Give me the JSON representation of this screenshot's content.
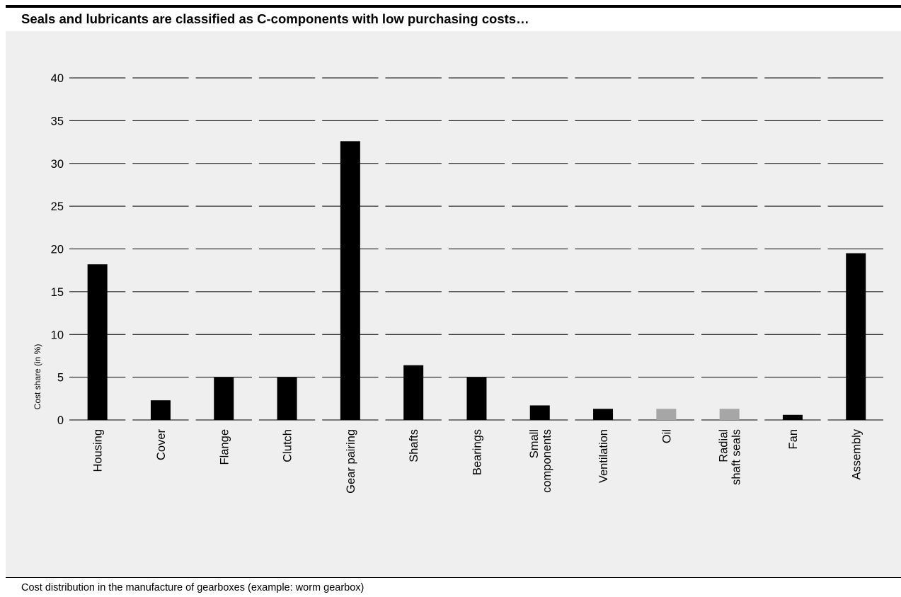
{
  "header": {
    "title": "Seals and lubricants are classified as C-components with low purchasing costs…"
  },
  "caption": "Cost distribution in the manufacture of gearboxes (example: worm gearbox)",
  "chart_data": {
    "type": "bar",
    "ylabel": "Cost share (in %)",
    "ylim": [
      0,
      40
    ],
    "yticks": [
      0,
      5,
      10,
      15,
      20,
      25,
      30,
      35,
      40
    ],
    "grid": true,
    "categories": [
      [
        "Housing"
      ],
      [
        "Cover"
      ],
      [
        "Flange"
      ],
      [
        "Clutch"
      ],
      [
        "Gear pairing"
      ],
      [
        "Shafts"
      ],
      [
        "Bearings"
      ],
      [
        "Small",
        "components"
      ],
      [
        "Ventilation"
      ],
      [
        "Oil"
      ],
      [
        "Radial",
        "shaft seals"
      ],
      [
        "Fan"
      ],
      [
        "Assembly"
      ]
    ],
    "values": [
      18.2,
      2.3,
      5.0,
      5.0,
      32.6,
      6.4,
      5.0,
      1.7,
      1.3,
      1.3,
      1.3,
      0.6,
      19.5
    ],
    "colors": [
      "#000000",
      "#000000",
      "#000000",
      "#000000",
      "#000000",
      "#000000",
      "#000000",
      "#000000",
      "#000000",
      "#a6a6a6",
      "#a6a6a6",
      "#000000",
      "#000000"
    ]
  }
}
